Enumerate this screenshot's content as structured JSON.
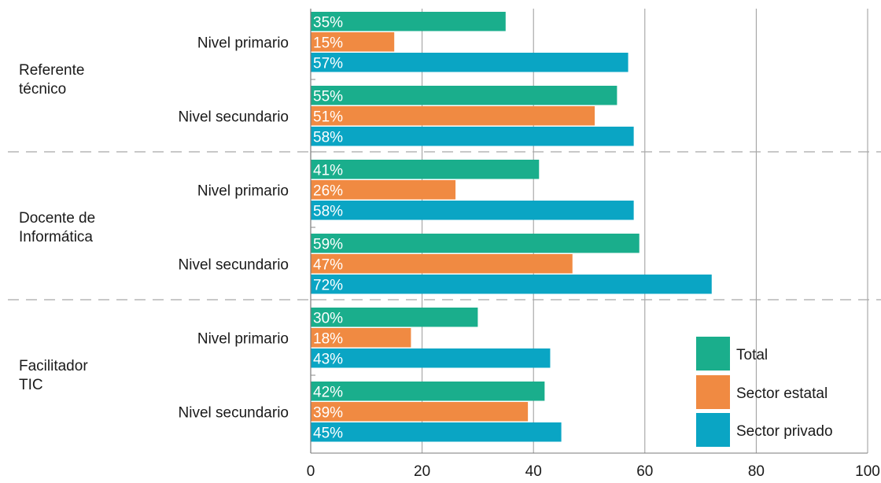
{
  "chart_data": {
    "type": "bar",
    "orientation": "horizontal",
    "xlim": [
      0,
      100
    ],
    "xticks": [
      0,
      20,
      40,
      60,
      80,
      100
    ],
    "grid": true,
    "legend_position": "bottom-right",
    "groups": [
      {
        "label": "Referente técnico",
        "label_lines": [
          "Referente",
          "técnico"
        ],
        "levels": [
          {
            "label": "Nivel primario",
            "values": [
              35,
              15,
              57
            ],
            "value_labels": [
              "35%",
              "15%",
              "57%"
            ]
          },
          {
            "label": "Nivel secundario",
            "values": [
              55,
              51,
              58
            ],
            "value_labels": [
              "55%",
              "51%",
              "58%"
            ]
          }
        ]
      },
      {
        "label": "Docente de Informática",
        "label_lines": [
          "Docente de",
          "Informática"
        ],
        "levels": [
          {
            "label": "Nivel primario",
            "values": [
              41,
              26,
              58
            ],
            "value_labels": [
              "41%",
              "26%",
              "58%"
            ]
          },
          {
            "label": "Nivel secundario",
            "values": [
              59,
              47,
              72
            ],
            "value_labels": [
              "59%",
              "47%",
              "72%"
            ]
          }
        ]
      },
      {
        "label": "Facilitador TIC",
        "label_lines": [
          "Facilitador",
          "TIC"
        ],
        "levels": [
          {
            "label": "Nivel primario",
            "values": [
              30,
              18,
              43
            ],
            "value_labels": [
              "30%",
              "18%",
              "43%"
            ]
          },
          {
            "label": "Nivel secundario",
            "values": [
              42,
              39,
              45
            ],
            "value_labels": [
              "42%",
              "39%",
              "45%"
            ]
          }
        ]
      }
    ],
    "series": [
      {
        "name": "Total",
        "color": "#1aae8c"
      },
      {
        "name": "Sector estatal",
        "color": "#f08a42"
      },
      {
        "name": "Sector privado",
        "color": "#0aa5c4"
      }
    ]
  }
}
